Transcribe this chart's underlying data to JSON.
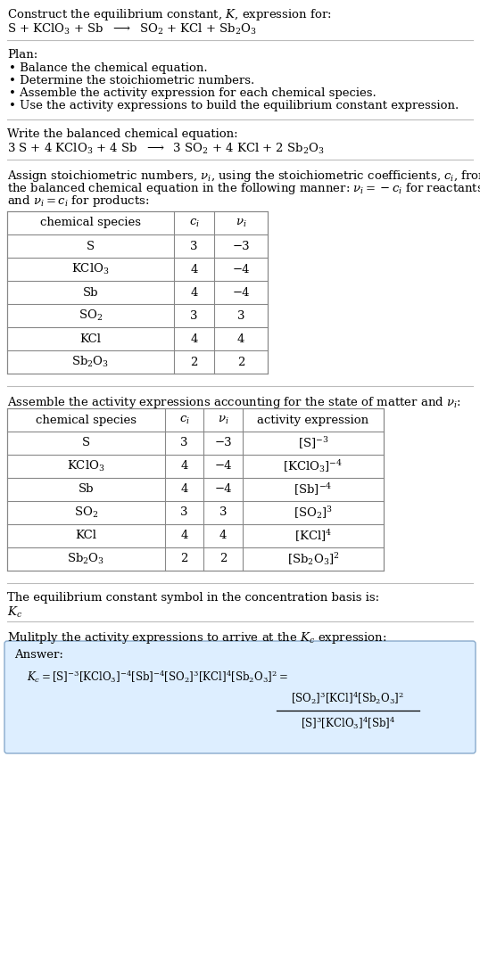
{
  "title_line1": "Construct the equilibrium constant, $K$, expression for:",
  "reaction_unbalanced": "S + KClO$_3$ + Sb  $\\longrightarrow$  SO$_2$ + KCl + Sb$_2$O$_3$",
  "plan_header": "Plan:",
  "plan_items": [
    "• Balance the chemical equation.",
    "• Determine the stoichiometric numbers.",
    "• Assemble the activity expression for each chemical species.",
    "• Use the activity expressions to build the equilibrium constant expression."
  ],
  "balanced_header": "Write the balanced chemical equation:",
  "reaction_balanced": "3 S + 4 KClO$_3$ + 4 Sb  $\\longrightarrow$  3 SO$_2$ + 4 KCl + 2 Sb$_2$O$_3$",
  "stoich_header_lines": [
    "Assign stoichiometric numbers, $\\nu_i$, using the stoichiometric coefficients, $c_i$, from",
    "the balanced chemical equation in the following manner: $\\nu_i = -c_i$ for reactants",
    "and $\\nu_i = c_i$ for products:"
  ],
  "table1_headers": [
    "chemical species",
    "$c_i$",
    "$\\nu_i$"
  ],
  "table1_data": [
    [
      "S",
      "3",
      "−3"
    ],
    [
      "KClO$_3$",
      "4",
      "−4"
    ],
    [
      "Sb",
      "4",
      "−4"
    ],
    [
      "SO$_2$",
      "3",
      "3"
    ],
    [
      "KCl",
      "4",
      "4"
    ],
    [
      "Sb$_2$O$_3$",
      "2",
      "2"
    ]
  ],
  "activity_header": "Assemble the activity expressions accounting for the state of matter and $\\nu_i$:",
  "table2_headers": [
    "chemical species",
    "$c_i$",
    "$\\nu_i$",
    "activity expression"
  ],
  "table2_data": [
    [
      "S",
      "3",
      "−3",
      "$[\\mathrm{S}]^{-3}$"
    ],
    [
      "KClO$_3$",
      "4",
      "−4",
      "$[\\mathrm{KClO_3}]^{-4}$"
    ],
    [
      "Sb",
      "4",
      "−4",
      "$[\\mathrm{Sb}]^{-4}$"
    ],
    [
      "SO$_2$",
      "3",
      "3",
      "$[\\mathrm{SO_2}]^{3}$"
    ],
    [
      "KCl",
      "4",
      "4",
      "$[\\mathrm{KCl}]^{4}$"
    ],
    [
      "Sb$_2$O$_3$",
      "2",
      "2",
      "$[\\mathrm{Sb_2O_3}]^{2}$"
    ]
  ],
  "kc_header": "The equilibrium constant symbol in the concentration basis is:",
  "kc_symbol": "$K_c$",
  "multiply_header": "Mulitply the activity expressions to arrive at the $K_c$ expression:",
  "answer_label": "Answer:",
  "answer_line1": "$K_c = [\\mathrm{S}]^{-3} [\\mathrm{KClO_3}]^{-4} [\\mathrm{Sb}]^{-4} [\\mathrm{SO_2}]^3 [\\mathrm{KCl}]^4 [\\mathrm{Sb_2O_3}]^2 = $",
  "answer_frac_num": "$[\\mathrm{SO_2}]^3 [\\mathrm{KCl}]^4 [\\mathrm{Sb_2O_3}]^2$",
  "answer_frac_den": "$[\\mathrm{S}]^3 [\\mathrm{KClO_3}]^4 [\\mathrm{Sb}]^4$",
  "answer_box_color": "#ddeeff",
  "answer_box_border": "#88aacc",
  "bg_color": "#ffffff",
  "text_color": "#000000",
  "table_border_color": "#888888",
  "separator_color": "#bbbbbb",
  "font_size": 9.5,
  "table_font_size": 9.5
}
